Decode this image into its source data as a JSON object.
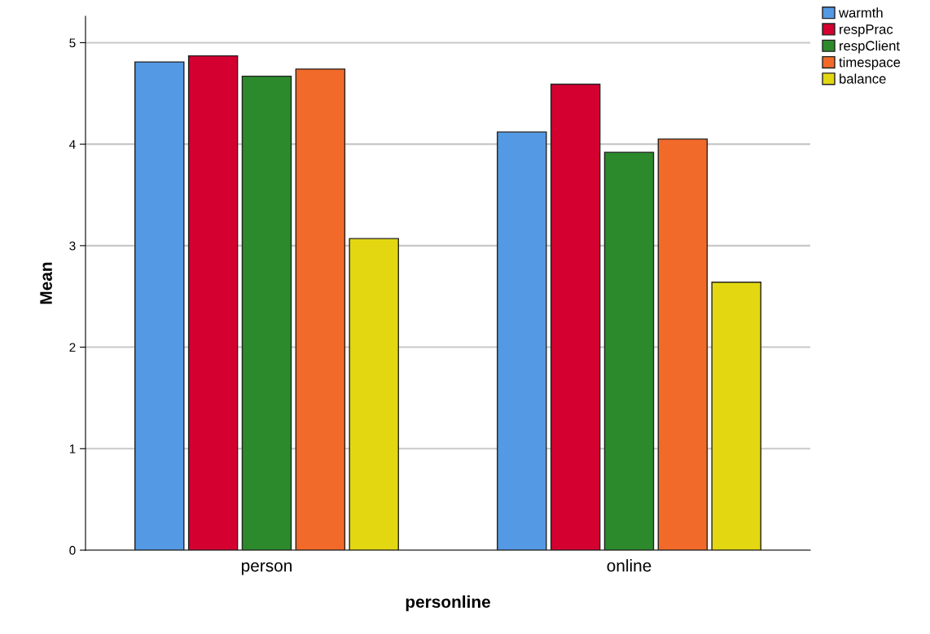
{
  "chart_data": {
    "type": "bar",
    "xlabel": "personline",
    "ylabel": "Mean",
    "categories": [
      "person",
      "online"
    ],
    "series": [
      {
        "name": "warmth",
        "color": "#5499e3",
        "values": [
          4.81,
          4.12
        ]
      },
      {
        "name": "respPrac",
        "color": "#d40030",
        "values": [
          4.87,
          4.59
        ]
      },
      {
        "name": "respClient",
        "color": "#2c8a2c",
        "values": [
          4.67,
          3.92
        ]
      },
      {
        "name": "timespace",
        "color": "#f26a2a",
        "values": [
          4.74,
          4.05
        ]
      },
      {
        "name": "balance",
        "color": "#e3d712",
        "values": [
          3.07,
          2.64
        ]
      }
    ],
    "ylim": [
      0,
      5.26
    ],
    "yticks": [
      0,
      1,
      2,
      3,
      4,
      5
    ],
    "grid": "y",
    "legend": "top right"
  }
}
